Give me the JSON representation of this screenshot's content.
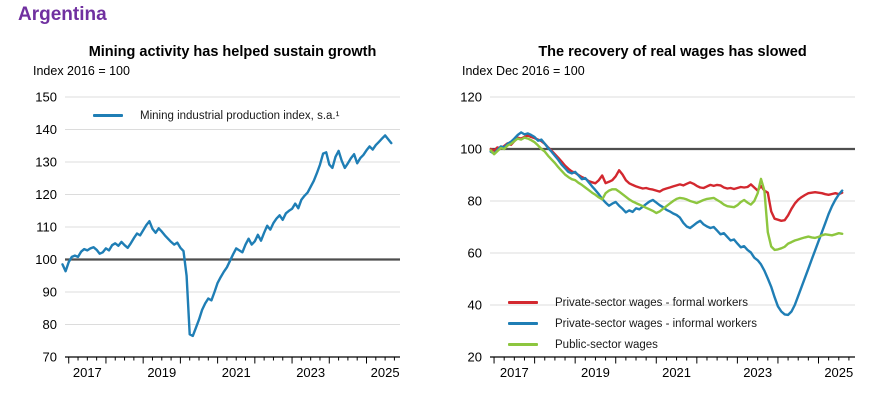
{
  "page": {
    "title": "Argentina"
  },
  "chart_data": [
    {
      "type": "line",
      "title": "Mining activity has helped sustain growth",
      "axis_note": "Index 2016 = 100",
      "ylabel": "Index 2016 = 100",
      "ylim": [
        70,
        150
      ],
      "yticks": [
        70,
        80,
        90,
        100,
        110,
        120,
        130,
        140,
        150
      ],
      "ref_line": 100,
      "xlim": [
        2016.9,
        2025.9
      ],
      "xtick_label_years": [
        2017,
        2019,
        2021,
        2023,
        2025
      ],
      "grid": "horizontal",
      "legend_position": "top-left-inside",
      "series": [
        {
          "name": "Mining industrial production index, s.a.¹",
          "color": "#1F7EB5",
          "x_start": 2016.8333,
          "points_per_year": 12,
          "values": [
            98.5,
            96.4,
            99.2,
            100.8,
            101.2,
            100.8,
            102.4,
            103.2,
            102.8,
            103.4,
            103.8,
            103.0,
            101.8,
            102.2,
            103.4,
            102.8,
            104.4,
            105.0,
            104.2,
            105.4,
            104.4,
            103.6,
            105.0,
            106.6,
            108.0,
            107.4,
            109.0,
            110.6,
            111.8,
            109.4,
            108.2,
            109.6,
            108.6,
            107.4,
            106.4,
            105.4,
            104.6,
            105.2,
            103.6,
            102.6,
            95.0,
            77.0,
            76.5,
            79.0,
            81.5,
            84.5,
            86.5,
            88.0,
            87.4,
            90.0,
            92.8,
            94.6,
            96.2,
            97.6,
            99.6,
            101.6,
            103.4,
            102.8,
            102.2,
            104.6,
            106.4,
            104.6,
            105.6,
            107.6,
            105.8,
            108.2,
            110.4,
            109.2,
            111.2,
            112.6,
            113.6,
            112.2,
            114.2,
            115.0,
            115.6,
            117.2,
            115.8,
            118.4,
            119.6,
            120.6,
            122.4,
            124.2,
            126.6,
            129.2,
            132.6,
            133.0,
            129.2,
            128.2,
            131.6,
            133.4,
            130.4,
            128.2,
            129.6,
            131.2,
            132.4,
            129.6,
            131.2,
            132.2,
            133.6,
            134.8,
            133.8,
            135.2,
            136.2,
            137.2,
            138.2,
            137.0,
            135.8
          ]
        }
      ]
    },
    {
      "type": "line",
      "title": "The recovery of real wages has slowed",
      "axis_note": "Index Dec 2016 = 100",
      "ylabel": "Index Dec 2016 = 100",
      "ylim": [
        20,
        120
      ],
      "yticks": [
        20,
        40,
        60,
        80,
        100,
        120
      ],
      "ref_line": 100,
      "xlim": [
        2016.9,
        2025.9
      ],
      "xtick_label_years": [
        2017,
        2019,
        2021,
        2023,
        2025
      ],
      "grid": "horizontal",
      "legend_position": "bottom-left-inside",
      "series": [
        {
          "name": "Private-sector wages - formal workers",
          "color": "#D3282F",
          "x_start": 2016.9167,
          "points_per_year": 12,
          "values": [
            100.0,
            99.4,
            100.6,
            100.2,
            101.2,
            102.2,
            101.6,
            103.0,
            104.4,
            104.0,
            104.6,
            105.2,
            104.6,
            104.2,
            103.6,
            103.0,
            102.0,
            100.6,
            99.4,
            98.0,
            96.6,
            95.2,
            93.6,
            92.4,
            91.4,
            90.8,
            90.0,
            89.2,
            88.6,
            87.6,
            87.2,
            86.8,
            88.0,
            89.8,
            86.9,
            87.4,
            88.0,
            89.5,
            91.8,
            90.2,
            88.0,
            86.8,
            86.2,
            85.6,
            85.2,
            84.8,
            85.0,
            84.6,
            84.4,
            84.0,
            83.6,
            84.4,
            84.8,
            85.2,
            85.6,
            86.0,
            86.4,
            86.0,
            86.6,
            87.2,
            86.6,
            85.8,
            85.2,
            85.0,
            85.6,
            86.2,
            85.8,
            86.2,
            86.0,
            85.2,
            84.8,
            85.0,
            84.6,
            85.0,
            85.4,
            85.2,
            85.4,
            86.4,
            85.2,
            84.0,
            85.8,
            84.0,
            83.2,
            76.0,
            73.2,
            72.8,
            72.4,
            72.6,
            74.5,
            77.0,
            79.0,
            80.5,
            81.5,
            82.3,
            83.0,
            83.2,
            83.4,
            83.2,
            83.0,
            82.6,
            82.4,
            82.7,
            83.0,
            82.6,
            83.2
          ]
        },
        {
          "name": "Private-sector wages - informal workers",
          "color": "#1F7EB5",
          "x_start": 2016.9167,
          "points_per_year": 12,
          "values": [
            99.0,
            98.2,
            99.6,
            101.0,
            100.6,
            102.0,
            102.8,
            104.0,
            105.4,
            106.4,
            105.6,
            106.0,
            105.4,
            104.6,
            103.2,
            103.6,
            102.0,
            100.4,
            99.0,
            97.4,
            95.8,
            94.0,
            92.6,
            91.2,
            90.6,
            91.2,
            89.8,
            88.4,
            88.8,
            87.2,
            85.6,
            84.2,
            82.6,
            80.8,
            79.4,
            78.2,
            79.0,
            79.6,
            78.2,
            77.0,
            75.6,
            76.4,
            75.8,
            77.2,
            76.8,
            77.8,
            78.8,
            79.8,
            80.4,
            79.4,
            78.4,
            77.6,
            76.6,
            76.0,
            75.2,
            74.6,
            73.6,
            71.6,
            70.2,
            69.6,
            70.6,
            71.6,
            72.4,
            71.0,
            70.2,
            69.6,
            70.0,
            68.6,
            67.2,
            67.6,
            66.2,
            64.8,
            65.2,
            63.6,
            62.2,
            62.6,
            61.2,
            60.2,
            58.2,
            57.2,
            55.6,
            53.2,
            50.2,
            47.0,
            43.0,
            39.5,
            37.5,
            36.4,
            36.2,
            37.5,
            40.0,
            43.5,
            47.0,
            50.5,
            54.0,
            57.5,
            61.0,
            64.5,
            68.0,
            71.5,
            75.0,
            78.0,
            80.5,
            82.5,
            84.0
          ]
        },
        {
          "name": "Public-sector wages",
          "color": "#8DC63F",
          "x_start": 2016.9167,
          "points_per_year": 12,
          "values": [
            99.5,
            98.0,
            99.2,
            100.4,
            100.0,
            101.4,
            102.0,
            103.0,
            104.0,
            103.6,
            104.4,
            104.0,
            103.4,
            102.6,
            101.4,
            100.0,
            99.0,
            97.4,
            96.0,
            94.6,
            93.0,
            91.6,
            90.2,
            89.2,
            88.4,
            88.0,
            87.0,
            86.2,
            85.2,
            84.2,
            83.2,
            82.4,
            81.4,
            80.6,
            83.0,
            84.0,
            84.5,
            84.5,
            83.6,
            82.6,
            81.6,
            80.6,
            79.8,
            79.2,
            78.6,
            78.0,
            77.4,
            76.8,
            76.2,
            75.4,
            76.0,
            77.0,
            78.0,
            79.0,
            80.0,
            80.8,
            81.2,
            81.0,
            80.6,
            80.0,
            79.6,
            79.2,
            79.8,
            80.4,
            80.8,
            81.0,
            81.2,
            80.4,
            79.6,
            78.6,
            78.0,
            77.8,
            77.6,
            78.4,
            79.6,
            80.4,
            79.4,
            78.6,
            80.0,
            83.0,
            88.5,
            84.0,
            68.0,
            62.5,
            61.2,
            61.4,
            61.8,
            62.4,
            63.6,
            64.2,
            64.8,
            65.2,
            65.6,
            66.0,
            66.3,
            66.0,
            65.8,
            66.2,
            66.8,
            67.2,
            67.0,
            66.8,
            67.2,
            67.6,
            67.4
          ]
        }
      ]
    }
  ],
  "colors": {
    "title_purple": "#7030A0",
    "blue": "#1F7EB5",
    "red": "#D3282F",
    "green": "#8DC63F",
    "gridline": "#DCDCDC",
    "ref_line": "#4E4E4E"
  }
}
